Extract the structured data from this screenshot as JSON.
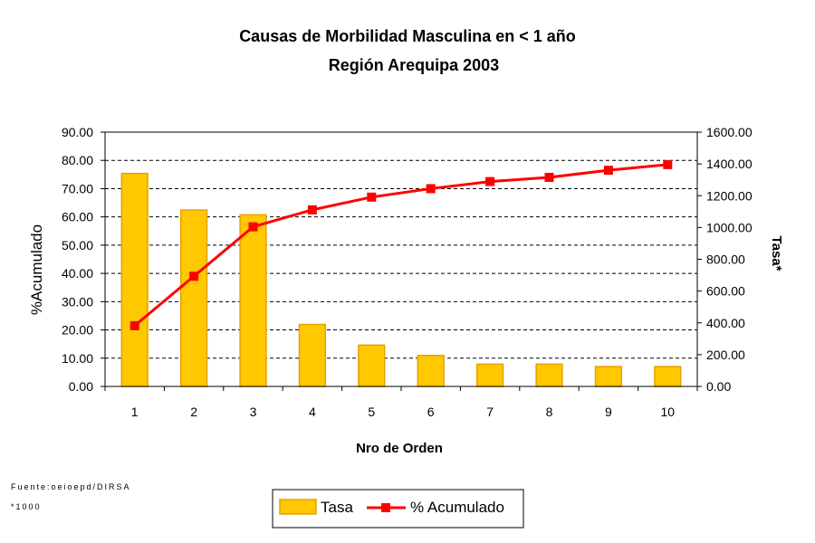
{
  "chart_data": {
    "type": "bar",
    "title": "Causas de Morbilidad Masculina en < 1 año",
    "subtitle": "Región Arequipa 2003",
    "xlabel": "Nro de Orden",
    "ylabel_left": "%Acumulado",
    "ylabel_right": "Tasa*",
    "categories": [
      "1",
      "2",
      "3",
      "4",
      "5",
      "6",
      "7",
      "8",
      "9",
      "10"
    ],
    "y_left_ticks": [
      "0.00",
      "10.00",
      "20.00",
      "30.00",
      "40.00",
      "50.00",
      "60.00",
      "70.00",
      "80.00",
      "90.00"
    ],
    "y_right_ticks": [
      "0.00",
      "200.00",
      "400.00",
      "600.00",
      "800.00",
      "1000.00",
      "1200.00",
      "1400.00",
      "1600.00"
    ],
    "ylim_left": [
      0,
      90
    ],
    "ylim_right": [
      0,
      1600
    ],
    "grid": true,
    "legend_position": "bottom",
    "series": [
      {
        "name": "Tasa",
        "type": "bar",
        "axis": "right",
        "color": "#FFC800",
        "edge_color": "#E8A000",
        "values": [
          1340,
          1110,
          1080,
          390,
          260,
          195,
          140,
          140,
          125,
          125
        ]
      },
      {
        "name": "% Acumulado",
        "type": "line",
        "axis": "left",
        "color": "#FF0000",
        "marker_color": "#FF0000",
        "values": [
          21.5,
          39.0,
          56.5,
          62.5,
          67.0,
          70.0,
          72.5,
          74.0,
          76.5,
          78.5
        ]
      }
    ]
  },
  "notes": {
    "source": "Fuente:oeioepd/DIRSA",
    "footnote": "*1000"
  }
}
